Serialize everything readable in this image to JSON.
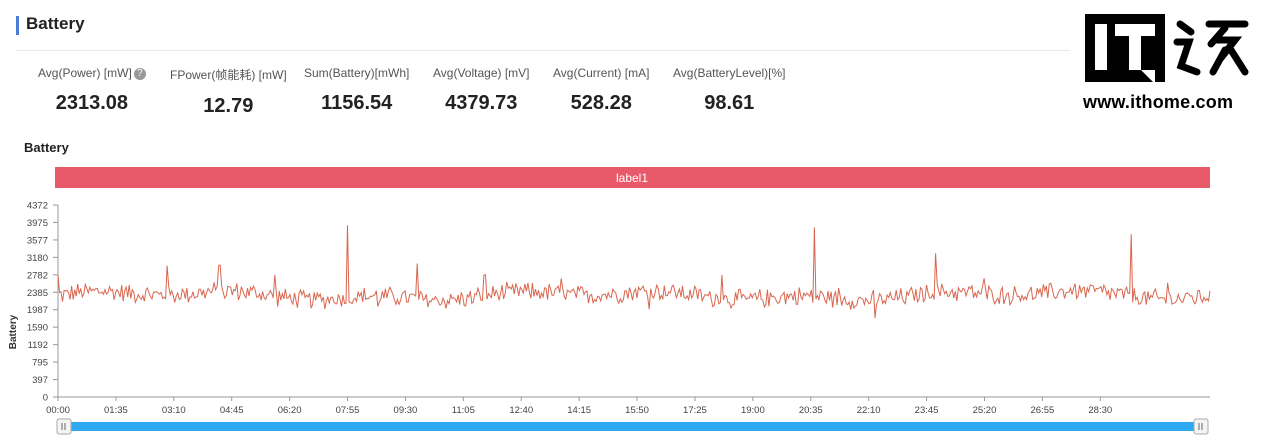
{
  "section": {
    "title": "Battery"
  },
  "metrics": [
    {
      "label": "Avg(Power) [mW]",
      "value": "2313.08"
    },
    {
      "label": "FPower(帧能耗) [mW]",
      "value": "12.79"
    },
    {
      "label": "Sum(Battery)[mWh]",
      "value": "1156.54"
    },
    {
      "label": "Avg(Voltage) [mV]",
      "value": "4379.73"
    },
    {
      "label": "Avg(Current) [mA]",
      "value": "528.28"
    },
    {
      "label": "Avg(BatteryLevel)[%]",
      "value": "98.61"
    }
  ],
  "watermark": {
    "url": "www.ithome.com",
    "logo_text": "IT之家"
  },
  "colors": {
    "accent": "#4a7fd8",
    "label_band": "#e85a6a",
    "series": "#d9664f",
    "slider": "#2ea8f0"
  },
  "chart_data": {
    "type": "line",
    "title": "Battery",
    "ylabel": "Battery",
    "xlabel": "",
    "band_label": "label1",
    "ylim": [
      0,
      4372
    ],
    "y_ticks": [
      "0",
      "397",
      "795",
      "1192",
      "1590",
      "1987",
      "2385",
      "2782",
      "3180",
      "3577",
      "3975",
      "4372"
    ],
    "x_ticks": [
      "00:00",
      "01:35",
      "03:10",
      "04:45",
      "06:20",
      "07:55",
      "09:30",
      "11:05",
      "12:40",
      "14:15",
      "15:50",
      "17:25",
      "19:00",
      "20:35",
      "22:10",
      "23:45",
      "25:20",
      "26:55",
      "28:30"
    ],
    "x_range_seconds": [
      0,
      1890
    ],
    "grid": false,
    "series": [
      {
        "name": "",
        "baseline": 2310,
        "noise_amplitude": 230,
        "spikes": [
          {
            "t": "00:00",
            "value": 2780
          },
          {
            "t": "03:00",
            "value": 2990
          },
          {
            "t": "04:25",
            "value": 3000
          },
          {
            "t": "05:55",
            "value": 2780
          },
          {
            "t": "07:55",
            "value": 3910
          },
          {
            "t": "08:45",
            "value": 2060
          },
          {
            "t": "09:50",
            "value": 3040
          },
          {
            "t": "11:40",
            "value": 2780
          },
          {
            "t": "13:45",
            "value": 2700
          },
          {
            "t": "16:10",
            "value": 2000
          },
          {
            "t": "18:10",
            "value": 2780
          },
          {
            "t": "20:40",
            "value": 3860
          },
          {
            "t": "21:20",
            "value": 2480
          },
          {
            "t": "22:20",
            "value": 1800
          },
          {
            "t": "24:00",
            "value": 3270
          },
          {
            "t": "25:20",
            "value": 2700
          },
          {
            "t": "29:20",
            "value": 3710
          },
          {
            "t": "30:20",
            "value": 2600
          }
        ]
      }
    ]
  }
}
